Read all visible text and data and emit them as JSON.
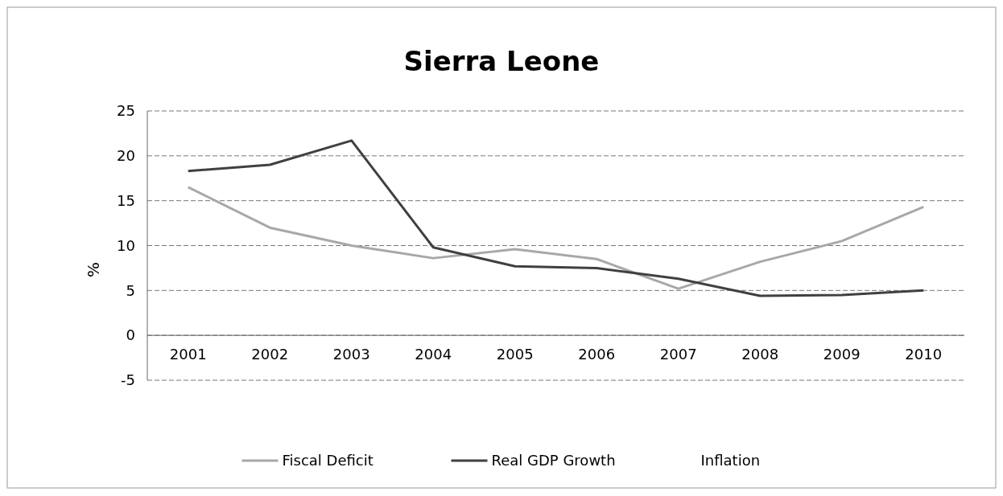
{
  "chart_data": {
    "type": "line",
    "title": "Sierra Leone",
    "ylabel": "%",
    "categories": [
      "2001",
      "2002",
      "2003",
      "2004",
      "2005",
      "2006",
      "2007",
      "2008",
      "2009",
      "2010"
    ],
    "series": [
      {
        "name": "Fiscal Deficit",
        "color": "#a8a8a8",
        "values": [
          16.5,
          12,
          10,
          8.6,
          9.6,
          8.5,
          5.2,
          8.2,
          10.5,
          14.3
        ]
      },
      {
        "name": "Real GDP Growth",
        "color": "#404040",
        "values": [
          18.3,
          19,
          21.7,
          9.8,
          7.7,
          7.5,
          6.3,
          4.4,
          4.5,
          5
        ]
      },
      {
        "name": "Inflation",
        "values": [
          null,
          null,
          null,
          null,
          null,
          null,
          null,
          null,
          null,
          null
        ]
      }
    ],
    "ylim": [
      -5,
      25
    ],
    "yticks": [
      -5,
      0,
      5,
      10,
      15,
      20,
      25
    ],
    "grid": "y",
    "legend": "bottom",
    "marker": "none",
    "line_style": "solid"
  }
}
